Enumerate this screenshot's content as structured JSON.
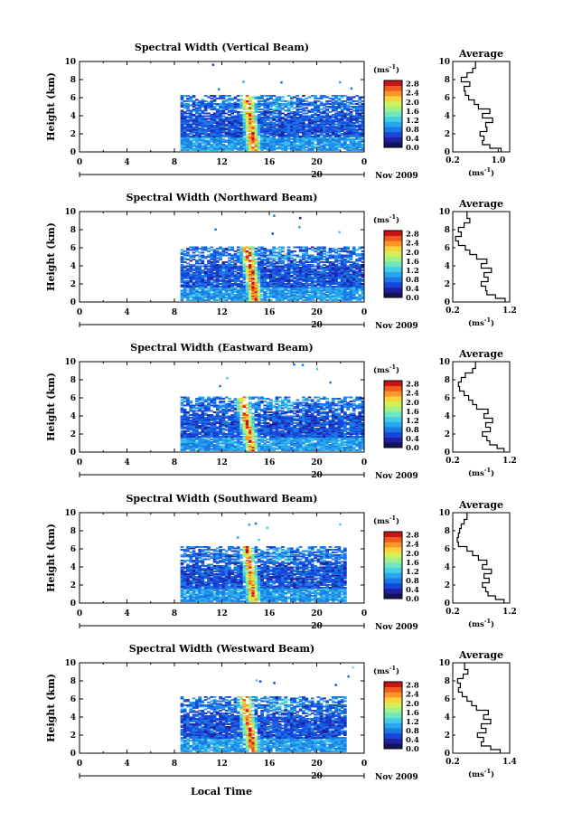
{
  "colors": {
    "bg": "#ffffff",
    "colorscale": [
      "#14145a",
      "#2020a0",
      "#1846dc",
      "#1a7ae6",
      "#28a6ee",
      "#46cde6",
      "#6ee6be",
      "#a0f08c",
      "#d2f05a",
      "#fad23c",
      "#fa962a",
      "#f05a1e",
      "#c81414"
    ],
    "profile_line": "#000000"
  },
  "figure": {
    "x_axis_label": "Local Time",
    "date_label": "Nov 2009",
    "day_label": "20",
    "x_ticks": [
      "0",
      "4",
      "8",
      "12",
      "16",
      "20",
      "0"
    ],
    "y_ticks": [
      "0",
      "2",
      "4",
      "6",
      "8",
      "10"
    ],
    "y_label": "Height (km)",
    "colorbar_unit": "(ms",
    "colorbar_unit_sup": "-1",
    "colorbar_unit_close": ")",
    "colorbar_ticks": [
      "0.0",
      "0.4",
      "0.8",
      "1.2",
      "1.6",
      "2.0",
      "2.4",
      "2.8"
    ],
    "profile_title": "Average",
    "profile_y_ticks": [
      "0",
      "2",
      "4",
      "6",
      "8",
      "10"
    ]
  },
  "chart_data": [
    {
      "type": "heatmap",
      "title": "Spectral Width (Vertical Beam)",
      "xlabel": "Local Time",
      "ylabel": "Height (km)",
      "xlim": [
        0,
        24
      ],
      "ylim": [
        0,
        10
      ],
      "zlim": [
        0.0,
        2.8
      ],
      "colorbar_label": "(ms-1)",
      "data_extent": {
        "time_start": 8.5,
        "time_end": 24,
        "top_km": 6.2
      },
      "enhanced_band": {
        "time_start": 13.6,
        "time_end": 14.6,
        "peak": 2.6
      },
      "profile": {
        "title": "Average",
        "xlabel": "(ms-1)",
        "xlim": [
          0.2,
          1.2
        ],
        "x_ticks": [
          "0.2",
          "1.0"
        ],
        "heights": [
          0.2,
          0.6,
          1.0,
          1.5,
          2.0,
          2.5,
          3.0,
          3.5,
          4.0,
          4.5,
          5.0,
          5.5,
          6.0,
          6.5,
          7.0,
          7.5,
          8.0,
          8.5,
          9.0,
          9.5
        ],
        "values": [
          1.05,
          0.85,
          0.72,
          0.75,
          0.68,
          0.8,
          0.78,
          0.9,
          0.72,
          0.85,
          0.65,
          0.58,
          0.48,
          0.42,
          0.4,
          0.5,
          0.35,
          0.45,
          0.55,
          0.6
        ]
      }
    },
    {
      "type": "heatmap",
      "title": "Spectral Width (Northward Beam)",
      "xlabel": "Local Time",
      "ylabel": "Height (km)",
      "xlim": [
        0,
        24
      ],
      "ylim": [
        0,
        10
      ],
      "zlim": [
        0.0,
        2.8
      ],
      "colorbar_label": "(ms-1)",
      "data_extent": {
        "time_start": 8.5,
        "time_end": 24,
        "top_km": 6.0
      },
      "enhanced_band": {
        "time_start": 13.6,
        "time_end": 14.8,
        "peak": 2.7
      },
      "profile": {
        "title": "Average",
        "xlabel": "(ms-1)",
        "xlim": [
          0.2,
          1.2
        ],
        "x_ticks": [
          "0.2",
          "1.2"
        ],
        "heights": [
          0.2,
          0.6,
          1.0,
          1.5,
          2.0,
          2.5,
          3.0,
          3.5,
          4.0,
          4.5,
          5.0,
          5.5,
          6.0,
          6.5,
          7.0,
          7.5,
          8.0,
          8.5,
          9.0,
          9.5
        ],
        "values": [
          1.12,
          0.95,
          0.8,
          0.78,
          0.7,
          0.82,
          0.75,
          0.88,
          0.7,
          0.8,
          0.62,
          0.5,
          0.42,
          0.3,
          0.25,
          0.35,
          0.3,
          0.4,
          0.5,
          0.45
        ]
      }
    },
    {
      "type": "heatmap",
      "title": "Spectral Width (Eastward Beam)",
      "xlabel": "Local Time",
      "ylabel": "Height (km)",
      "xlim": [
        0,
        24
      ],
      "ylim": [
        0,
        10
      ],
      "zlim": [
        0.0,
        2.8
      ],
      "colorbar_label": "(ms-1)",
      "data_extent": {
        "time_start": 8.5,
        "time_end": 24,
        "top_km": 6.0
      },
      "enhanced_band": {
        "time_start": 13.2,
        "time_end": 14.6,
        "peak": 2.5
      },
      "profile": {
        "title": "Average",
        "xlabel": "(ms-1)",
        "xlim": [
          0.2,
          1.2
        ],
        "x_ticks": [
          "0.2",
          "1.2"
        ],
        "heights": [
          0.2,
          0.6,
          1.0,
          1.5,
          2.0,
          2.5,
          3.0,
          3.5,
          4.0,
          4.5,
          5.0,
          5.5,
          6.0,
          6.5,
          7.0,
          7.5,
          8.0,
          8.5,
          9.0,
          9.5
        ],
        "values": [
          1.1,
          0.98,
          0.85,
          0.8,
          0.72,
          0.86,
          0.78,
          0.9,
          0.75,
          0.82,
          0.62,
          0.55,
          0.48,
          0.4,
          0.32,
          0.3,
          0.35,
          0.42,
          0.55,
          0.6
        ]
      }
    },
    {
      "type": "heatmap",
      "title": "Spectral Width (Southward Beam)",
      "xlabel": "Local Time",
      "ylabel": "Height (km)",
      "xlim": [
        0,
        24
      ],
      "ylim": [
        0,
        10
      ],
      "zlim": [
        0.0,
        2.8
      ],
      "colorbar_label": "(ms-1)",
      "data_extent": {
        "time_start": 8.5,
        "time_end": 22.5,
        "top_km": 6.1
      },
      "enhanced_band": {
        "time_start": 13.6,
        "time_end": 14.6,
        "peak": 2.4
      },
      "profile": {
        "title": "Average",
        "xlabel": "(ms-1)",
        "xlim": [
          0.2,
          1.2
        ],
        "x_ticks": [
          "0.2",
          "1.2"
        ],
        "heights": [
          0.2,
          0.6,
          1.0,
          1.5,
          2.0,
          2.5,
          3.0,
          3.5,
          4.0,
          4.5,
          5.0,
          5.5,
          6.0,
          6.5,
          7.0,
          7.5,
          8.0,
          8.5,
          9.0,
          9.5
        ],
        "values": [
          1.1,
          0.95,
          0.82,
          0.78,
          0.72,
          0.84,
          0.75,
          0.88,
          0.72,
          0.8,
          0.65,
          0.55,
          0.45,
          0.3,
          0.28,
          0.3,
          0.32,
          0.35,
          0.4,
          0.45
        ]
      }
    },
    {
      "type": "heatmap",
      "title": "Spectral Width (Westward Beam)",
      "xlabel": "Local Time",
      "ylabel": "Height (km)",
      "xlim": [
        0,
        24
      ],
      "ylim": [
        0,
        10
      ],
      "zlim": [
        0.0,
        2.8
      ],
      "colorbar_label": "(ms-1)",
      "data_extent": {
        "time_start": 8.5,
        "time_end": 22.5,
        "top_km": 6.2
      },
      "enhanced_band": {
        "time_start": 13.4,
        "time_end": 14.6,
        "peak": 2.6
      },
      "profile": {
        "title": "Average",
        "xlabel": "(ms-1)",
        "xlim": [
          0.2,
          1.4
        ],
        "x_ticks": [
          "0.2",
          "1.4"
        ],
        "heights": [
          0.2,
          0.6,
          1.0,
          1.5,
          2.0,
          2.5,
          3.0,
          3.5,
          4.0,
          4.5,
          5.0,
          5.5,
          6.0,
          6.5,
          7.0,
          7.5,
          8.0,
          8.5,
          9.0,
          9.5
        ],
        "values": [
          1.2,
          1.0,
          0.8,
          0.85,
          0.72,
          0.9,
          0.8,
          1.0,
          0.85,
          0.95,
          0.7,
          0.6,
          0.5,
          0.4,
          0.32,
          0.36,
          0.3,
          0.42,
          0.52,
          0.45
        ]
      }
    }
  ]
}
